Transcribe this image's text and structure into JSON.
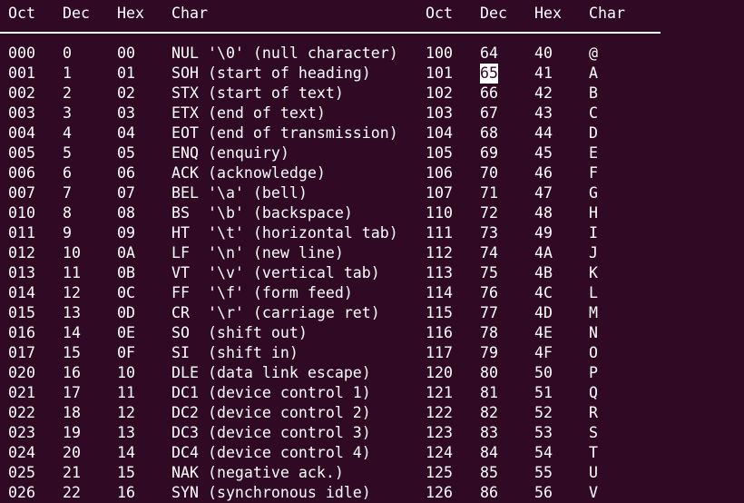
{
  "headers": [
    "Oct",
    "Dec",
    "Hex",
    "Char",
    "Oct",
    "Dec",
    "Hex",
    "Char"
  ],
  "colors": {
    "background": "#300a24",
    "text": "#ffffff"
  },
  "cursor": {
    "row": 1,
    "column": 5
  },
  "rows": [
    [
      "000",
      "0",
      "00",
      "NUL '\\0' (null character)",
      "100",
      "64",
      "40",
      "@"
    ],
    [
      "001",
      "1",
      "01",
      "SOH (start of heading)",
      "101",
      "65",
      "41",
      "A"
    ],
    [
      "002",
      "2",
      "02",
      "STX (start of text)",
      "102",
      "66",
      "42",
      "B"
    ],
    [
      "003",
      "3",
      "03",
      "ETX (end of text)",
      "103",
      "67",
      "43",
      "C"
    ],
    [
      "004",
      "4",
      "04",
      "EOT (end of transmission)",
      "104",
      "68",
      "44",
      "D"
    ],
    [
      "005",
      "5",
      "05",
      "ENQ (enquiry)",
      "105",
      "69",
      "45",
      "E"
    ],
    [
      "006",
      "6",
      "06",
      "ACK (acknowledge)",
      "106",
      "70",
      "46",
      "F"
    ],
    [
      "007",
      "7",
      "07",
      "BEL '\\a' (bell)",
      "107",
      "71",
      "47",
      "G"
    ],
    [
      "010",
      "8",
      "08",
      "BS  '\\b' (backspace)",
      "110",
      "72",
      "48",
      "H"
    ],
    [
      "011",
      "9",
      "09",
      "HT  '\\t' (horizontal tab)",
      "111",
      "73",
      "49",
      "I"
    ],
    [
      "012",
      "10",
      "0A",
      "LF  '\\n' (new line)",
      "112",
      "74",
      "4A",
      "J"
    ],
    [
      "013",
      "11",
      "0B",
      "VT  '\\v' (vertical tab)",
      "113",
      "75",
      "4B",
      "K"
    ],
    [
      "014",
      "12",
      "0C",
      "FF  '\\f' (form feed)",
      "114",
      "76",
      "4C",
      "L"
    ],
    [
      "015",
      "13",
      "0D",
      "CR  '\\r' (carriage ret)",
      "115",
      "77",
      "4D",
      "M"
    ],
    [
      "016",
      "14",
      "0E",
      "SO  (shift out)",
      "116",
      "78",
      "4E",
      "N"
    ],
    [
      "017",
      "15",
      "0F",
      "SI  (shift in)",
      "117",
      "79",
      "4F",
      "O"
    ],
    [
      "020",
      "16",
      "10",
      "DLE (data link escape)",
      "120",
      "80",
      "50",
      "P"
    ],
    [
      "021",
      "17",
      "11",
      "DC1 (device control 1)",
      "121",
      "81",
      "51",
      "Q"
    ],
    [
      "022",
      "18",
      "12",
      "DC2 (device control 2)",
      "122",
      "82",
      "52",
      "R"
    ],
    [
      "023",
      "19",
      "13",
      "DC3 (device control 3)",
      "123",
      "83",
      "53",
      "S"
    ],
    [
      "024",
      "20",
      "14",
      "DC4 (device control 4)",
      "124",
      "84",
      "54",
      "T"
    ],
    [
      "025",
      "21",
      "15",
      "NAK (negative ack.)",
      "125",
      "85",
      "55",
      "U"
    ],
    [
      "026",
      "22",
      "16",
      "SYN (synchronous idle)",
      "126",
      "86",
      "56",
      "V"
    ]
  ]
}
